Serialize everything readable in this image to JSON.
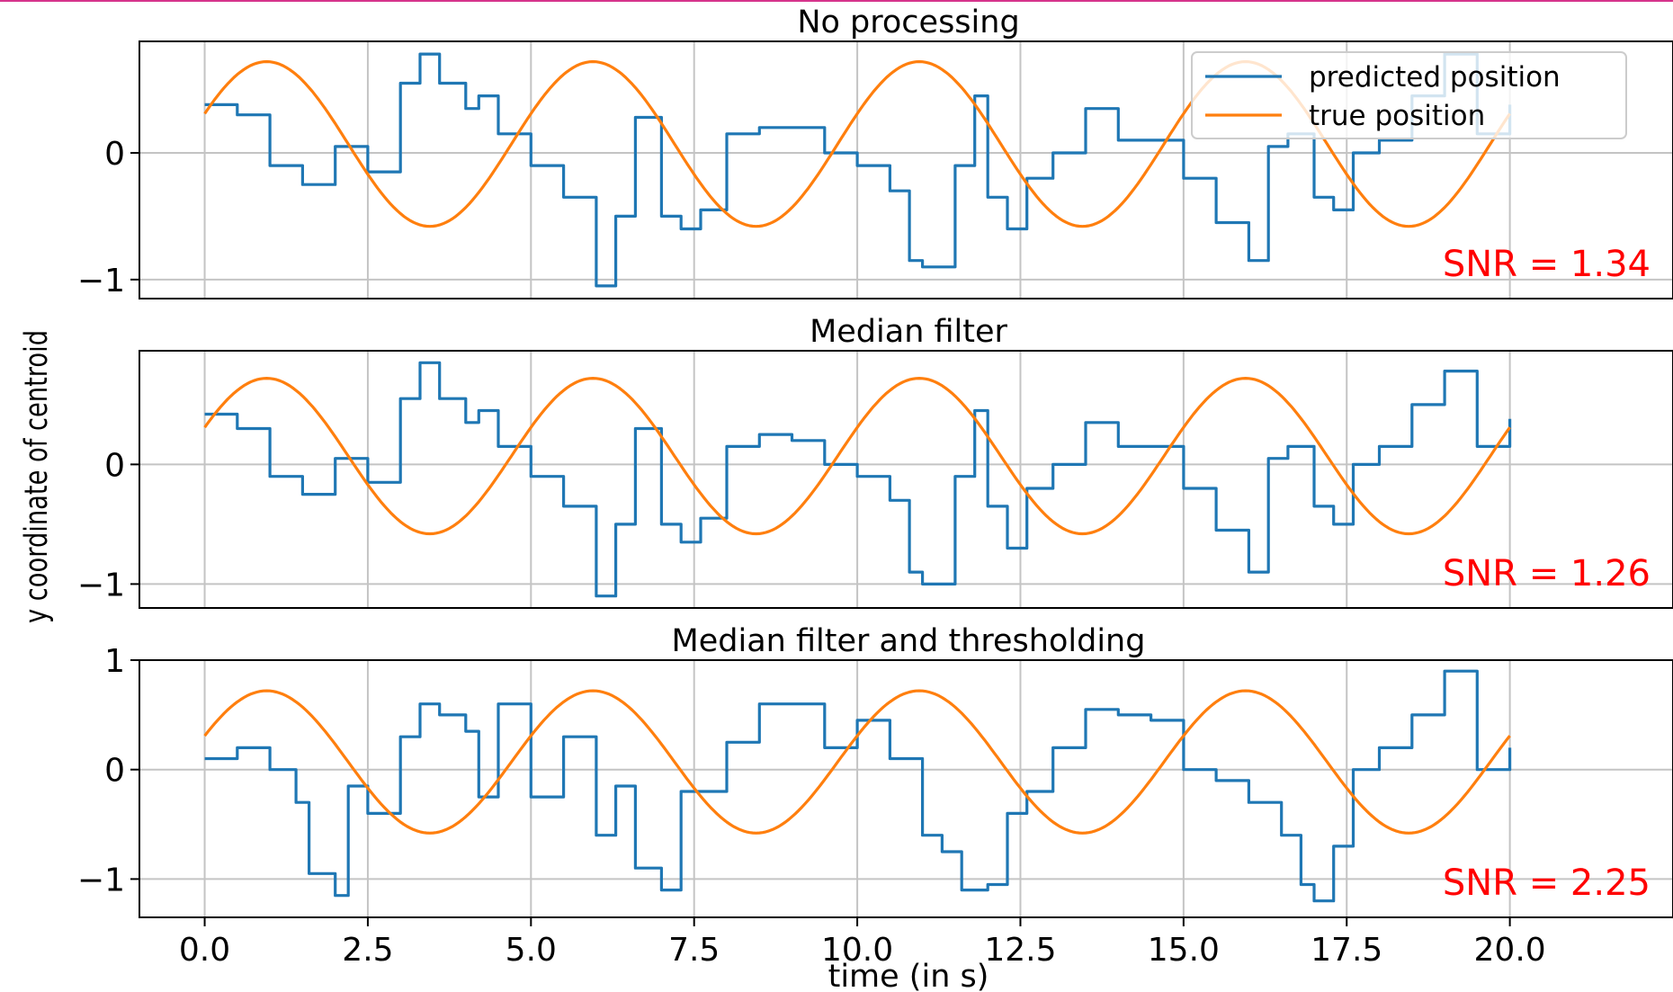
{
  "chart_data": {
    "type": "line",
    "ylabel": "y coordinate of centroid",
    "xlabel": "time (in s)",
    "xlim": [
      -1.0,
      22.5
    ],
    "xticks": [
      0.0,
      2.5,
      5.0,
      7.5,
      10.0,
      12.5,
      15.0,
      17.5,
      20.0
    ],
    "xtick_labels": [
      "0.0",
      "2.5",
      "5.0",
      "7.5",
      "10.0",
      "12.5",
      "15.0",
      "17.5",
      "20.0"
    ],
    "grid": true,
    "legend": {
      "placement": "upper-right of first panel",
      "entries": [
        {
          "label": "predicted position",
          "color": "#1f77b4"
        },
        {
          "label": "true position",
          "color": "#ff7f0e"
        }
      ]
    },
    "panels": [
      {
        "title": "No processing",
        "annotation": "SNR = 1.34",
        "annotation_color": "#ff0000",
        "ylim": [
          -1.15,
          0.88
        ],
        "yticks": [
          0,
          -1
        ],
        "ytick_labels": [
          "0",
          "−1"
        ],
        "series": [
          {
            "name": "predicted position",
            "color": "#1f77b4",
            "x": [
              0.0,
              0.5,
              1.0,
              1.5,
              2.0,
              2.5,
              3.0,
              3.3,
              3.6,
              4.0,
              4.2,
              4.5,
              5.0,
              5.5,
              6.0,
              6.3,
              6.6,
              7.0,
              7.3,
              7.6,
              8.0,
              8.5,
              9.0,
              9.5,
              10.0,
              10.5,
              10.8,
              11.0,
              11.5,
              11.8,
              12.0,
              12.3,
              12.6,
              13.0,
              13.5,
              14.0,
              14.5,
              15.0,
              15.5,
              16.0,
              16.3,
              16.6,
              17.0,
              17.3,
              17.6,
              18.0,
              18.5,
              19.0,
              19.5,
              20.0
            ],
            "y": [
              0.38,
              0.3,
              -0.1,
              -0.25,
              0.05,
              -0.15,
              0.55,
              0.78,
              0.55,
              0.35,
              0.45,
              0.15,
              -0.1,
              -0.35,
              -1.05,
              -0.5,
              0.28,
              -0.5,
              -0.6,
              -0.45,
              0.15,
              0.2,
              0.2,
              0.0,
              -0.1,
              -0.3,
              -0.85,
              -0.9,
              -0.1,
              0.45,
              -0.35,
              -0.6,
              -0.2,
              0.0,
              0.35,
              0.1,
              0.1,
              -0.2,
              -0.55,
              -0.85,
              0.05,
              0.15,
              -0.35,
              -0.45,
              0.0,
              0.1,
              0.45,
              0.78,
              0.15,
              0.38
            ]
          },
          {
            "name": "true position",
            "color": "#ff7f0e",
            "amplitude": 0.65,
            "offset": 0.07,
            "period": 5.0,
            "phase_zero_at": -0.3,
            "x": [
              0,
              20
            ]
          }
        ]
      },
      {
        "title": "Median filter",
        "annotation": "SNR = 1.26",
        "annotation_color": "#ff0000",
        "ylim": [
          -1.2,
          0.95
        ],
        "yticks": [
          0,
          -1
        ],
        "ytick_labels": [
          "0",
          "−1"
        ],
        "series": [
          {
            "name": "predicted position",
            "color": "#1f77b4",
            "x": [
              0.0,
              0.5,
              1.0,
              1.5,
              2.0,
              2.5,
              3.0,
              3.3,
              3.6,
              4.0,
              4.2,
              4.5,
              5.0,
              5.5,
              6.0,
              6.3,
              6.6,
              7.0,
              7.3,
              7.6,
              8.0,
              8.5,
              9.0,
              9.5,
              10.0,
              10.5,
              10.8,
              11.0,
              11.5,
              11.8,
              12.0,
              12.3,
              12.6,
              13.0,
              13.5,
              14.0,
              14.5,
              15.0,
              15.5,
              16.0,
              16.3,
              16.6,
              17.0,
              17.3,
              17.6,
              18.0,
              18.5,
              19.0,
              19.5,
              20.0
            ],
            "y": [
              0.42,
              0.3,
              -0.1,
              -0.25,
              0.05,
              -0.15,
              0.55,
              0.85,
              0.55,
              0.35,
              0.45,
              0.15,
              -0.1,
              -0.35,
              -1.1,
              -0.5,
              0.3,
              -0.5,
              -0.65,
              -0.45,
              0.15,
              0.25,
              0.2,
              0.0,
              -0.1,
              -0.3,
              -0.9,
              -1.0,
              -0.1,
              0.45,
              -0.35,
              -0.7,
              -0.2,
              0.0,
              0.35,
              0.15,
              0.15,
              -0.2,
              -0.55,
              -0.9,
              0.05,
              0.15,
              -0.35,
              -0.5,
              0.0,
              0.15,
              0.5,
              0.78,
              0.15,
              0.38
            ]
          },
          {
            "name": "true position",
            "color": "#ff7f0e",
            "amplitude": 0.65,
            "offset": 0.07,
            "period": 5.0,
            "phase_zero_at": -0.3,
            "x": [
              0,
              20
            ]
          }
        ]
      },
      {
        "title": "Median filter and thresholding",
        "annotation": "SNR = 2.25",
        "annotation_color": "#ff0000",
        "ylim": [
          -1.35,
          1.0
        ],
        "yticks": [
          1,
          0,
          -1
        ],
        "ytick_labels": [
          "1",
          "0",
          "−1"
        ],
        "series": [
          {
            "name": "predicted position",
            "color": "#1f77b4",
            "x": [
              0.0,
              0.5,
              1.0,
              1.4,
              1.6,
              2.0,
              2.2,
              2.5,
              3.0,
              3.3,
              3.6,
              4.0,
              4.2,
              4.5,
              5.0,
              5.5,
              6.0,
              6.3,
              6.6,
              7.0,
              7.3,
              7.6,
              8.0,
              8.5,
              9.0,
              9.5,
              10.0,
              10.5,
              11.0,
              11.3,
              11.6,
              12.0,
              12.3,
              12.6,
              13.0,
              13.5,
              14.0,
              14.5,
              15.0,
              15.5,
              16.0,
              16.5,
              16.8,
              17.0,
              17.3,
              17.6,
              18.0,
              18.5,
              19.0,
              19.5,
              20.0
            ],
            "y": [
              0.1,
              0.2,
              0.0,
              -0.3,
              -0.95,
              -1.15,
              -0.15,
              -0.4,
              0.3,
              0.6,
              0.5,
              0.35,
              -0.25,
              0.6,
              -0.25,
              0.3,
              -0.6,
              -0.15,
              -0.9,
              -1.1,
              -0.2,
              -0.2,
              0.25,
              0.6,
              0.6,
              0.2,
              0.45,
              0.1,
              -0.6,
              -0.75,
              -1.1,
              -1.05,
              -0.4,
              -0.2,
              0.2,
              0.55,
              0.5,
              0.45,
              0.0,
              -0.1,
              -0.3,
              -0.6,
              -1.05,
              -1.2,
              -0.7,
              0.0,
              0.2,
              0.5,
              0.9,
              0.0,
              0.2
            ]
          },
          {
            "name": "true position",
            "color": "#ff7f0e",
            "amplitude": 0.65,
            "offset": 0.07,
            "period": 5.0,
            "phase_zero_at": -0.3,
            "x": [
              0,
              20
            ]
          }
        ]
      }
    ]
  }
}
